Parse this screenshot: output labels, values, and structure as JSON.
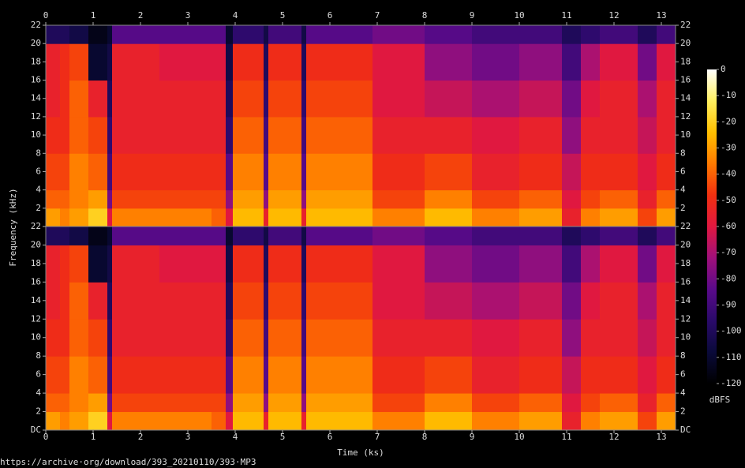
{
  "chart_data": {
    "type": "spectrogram",
    "xlabel": "Time (ks)",
    "ylabel": "Frequency (kHz)",
    "colorbar_label": "dBFS",
    "footer": "https://archive·org/download/393_20210110/393·MP3",
    "xlim": [
      0,
      13.3
    ],
    "xticks": [
      0,
      1,
      2,
      3,
      4,
      5,
      6,
      7,
      8,
      9,
      10,
      11,
      12,
      13
    ],
    "ylim": [
      0,
      22
    ],
    "yticks": [
      {
        "value": 0,
        "label": "DC"
      },
      2,
      4,
      6,
      8,
      10,
      12,
      14,
      16,
      18,
      20,
      22
    ],
    "clim": [
      -120,
      0
    ],
    "cticks": [
      0,
      -10,
      -20,
      -30,
      -40,
      -50,
      -60,
      -70,
      -80,
      -90,
      -100,
      -110,
      -120
    ],
    "colors": [
      "#000000",
      "#0a0a3a",
      "#2a0a6a",
      "#5a0a8a",
      "#a0107a",
      "#e01840",
      "#f23010",
      "#ff7a00",
      "#ffc000",
      "#fff060",
      "#ffffff"
    ],
    "time_edges": [
      0,
      0.3,
      0.5,
      0.9,
      1.3,
      1.4,
      2.4,
      3.5,
      3.8,
      3.95,
      4.6,
      4.7,
      5.4,
      5.5,
      6.9,
      8.0,
      9.0,
      10.0,
      10.9,
      11.3,
      11.7,
      12.5,
      12.9,
      13.3
    ],
    "freq_edges": [
      0,
      2,
      4,
      8,
      12,
      16,
      20,
      22
    ],
    "channels": [
      "top",
      "bottom"
    ],
    "values": [
      [
        -30,
        -40,
        -45,
        -50,
        -55,
        -55,
        -100
      ],
      [
        -35,
        -40,
        -45,
        -50,
        -50,
        -50,
        -100
      ],
      [
        -30,
        -35,
        -35,
        -40,
        -40,
        -45,
        -105
      ],
      [
        -20,
        -30,
        -40,
        -45,
        -55,
        -110,
        -115
      ],
      [
        -60,
        -80,
        -90,
        -95,
        -100,
        -105,
        -110
      ],
      [
        -35,
        -45,
        -50,
        -55,
        -55,
        -55,
        -85
      ],
      [
        -35,
        -45,
        -50,
        -55,
        -55,
        -60,
        -85
      ],
      [
        -40,
        -45,
        -50,
        -55,
        -55,
        -60,
        -85
      ],
      [
        -60,
        -75,
        -85,
        -95,
        -100,
        -105,
        -110
      ],
      [
        -25,
        -30,
        -35,
        -40,
        -45,
        -50,
        -95
      ],
      [
        -55,
        -75,
        -85,
        -90,
        -95,
        -100,
        -105
      ],
      [
        -25,
        -30,
        -35,
        -40,
        -45,
        -50,
        -90
      ],
      [
        -55,
        -75,
        -85,
        -90,
        -95,
        -100,
        -105
      ],
      [
        -25,
        -30,
        -35,
        -40,
        -45,
        -50,
        -85
      ],
      [
        -35,
        -45,
        -50,
        -55,
        -60,
        -60,
        -80
      ],
      [
        -25,
        -35,
        -45,
        -55,
        -65,
        -75,
        -85
      ],
      [
        -35,
        -45,
        -55,
        -60,
        -70,
        -80,
        -90
      ],
      [
        -30,
        -40,
        -50,
        -55,
        -65,
        -75,
        -90
      ],
      [
        -55,
        -60,
        -65,
        -75,
        -80,
        -90,
        -100
      ],
      [
        -35,
        -45,
        -50,
        -55,
        -60,
        -70,
        -95
      ],
      [
        -30,
        -40,
        -50,
        -55,
        -55,
        -60,
        -90
      ],
      [
        -45,
        -55,
        -60,
        -65,
        -70,
        -80,
        -100
      ],
      [
        -30,
        -40,
        -50,
        -55,
        -55,
        -60,
        -90
      ]
    ]
  }
}
